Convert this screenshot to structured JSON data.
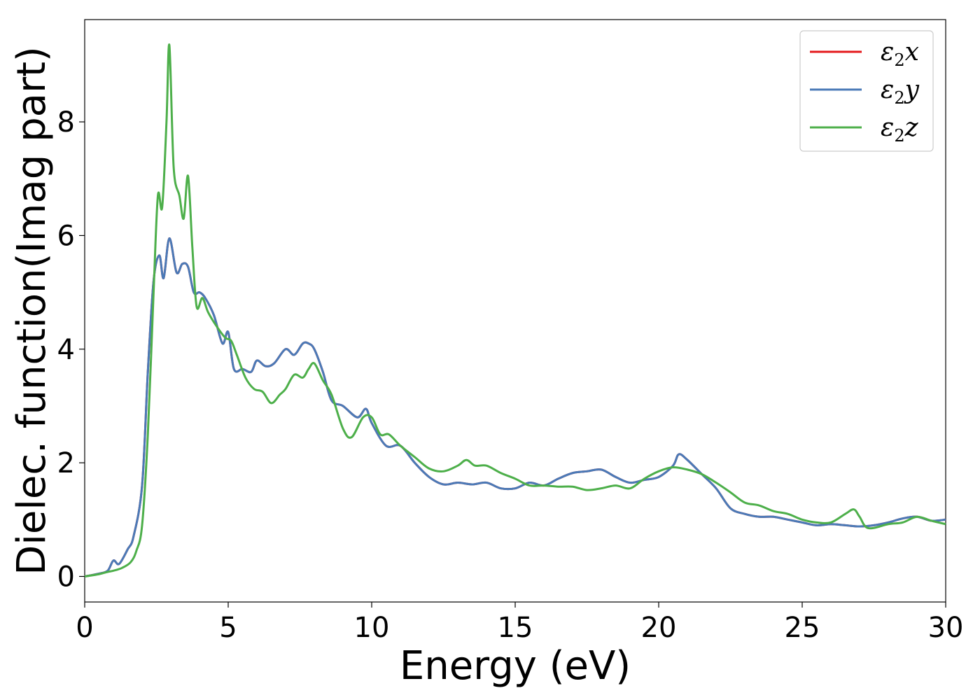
{
  "chart_data": {
    "type": "line",
    "xlabel": "Energy (eV)",
    "ylabel": "Dielec. function(Imag part)",
    "xlim": [
      0,
      30
    ],
    "ylim": [
      -0.45,
      9.8
    ],
    "x_ticks": [
      0,
      5,
      10,
      15,
      20,
      25,
      30
    ],
    "y_ticks": [
      0,
      2,
      4,
      6,
      8
    ],
    "legend_position": "top-right",
    "grid": false,
    "series": [
      {
        "name": "x",
        "label_prefix": "ε",
        "label_sub": "2",
        "color": "#e41a1c",
        "x": [
          0,
          0.5,
          0.8,
          1.0,
          1.2,
          1.5,
          1.7,
          2.0,
          2.2,
          2.4,
          2.6,
          2.75,
          2.95,
          3.2,
          3.4,
          3.6,
          3.8,
          4.0,
          4.2,
          4.5,
          4.8,
          5.0,
          5.2,
          5.5,
          5.8,
          6.0,
          6.3,
          6.6,
          7.0,
          7.3,
          7.6,
          7.8,
          8.0,
          8.3,
          8.6,
          9.0,
          9.5,
          9.8,
          10.0,
          10.5,
          11.0,
          11.5,
          12.0,
          12.5,
          13.0,
          13.5,
          14.0,
          14.5,
          15.0,
          15.5,
          16.0,
          16.5,
          17.0,
          17.5,
          18.0,
          18.5,
          19.0,
          19.5,
          20.0,
          20.5,
          20.7,
          21.0,
          21.5,
          22.0,
          22.5,
          23.0,
          23.5,
          24.0,
          24.5,
          25.0,
          25.5,
          26.0,
          26.5,
          27.0,
          27.5,
          28.0,
          28.5,
          29.0,
          29.5,
          30.0
        ],
        "values": [
          0,
          0.05,
          0.1,
          0.28,
          0.22,
          0.48,
          0.7,
          1.6,
          3.6,
          5.2,
          5.65,
          5.25,
          5.95,
          5.35,
          5.5,
          5.45,
          5.0,
          5.0,
          4.9,
          4.6,
          4.1,
          4.3,
          3.65,
          3.65,
          3.6,
          3.8,
          3.7,
          3.75,
          4.0,
          3.9,
          4.1,
          4.1,
          4.0,
          3.6,
          3.1,
          3.0,
          2.8,
          2.95,
          2.7,
          2.3,
          2.3,
          2.0,
          1.75,
          1.62,
          1.65,
          1.62,
          1.65,
          1.55,
          1.55,
          1.65,
          1.6,
          1.72,
          1.82,
          1.85,
          1.88,
          1.75,
          1.65,
          1.7,
          1.75,
          1.95,
          2.15,
          2.05,
          1.8,
          1.55,
          1.2,
          1.1,
          1.05,
          1.05,
          1.0,
          0.95,
          0.9,
          0.92,
          0.9,
          0.88,
          0.9,
          0.95,
          1.02,
          1.05,
          0.98,
          1.0
        ]
      },
      {
        "name": "y",
        "label_prefix": "ε",
        "label_sub": "2",
        "color": "#4a7ab7",
        "x": [
          0,
          0.5,
          0.8,
          1.0,
          1.2,
          1.5,
          1.7,
          2.0,
          2.2,
          2.4,
          2.6,
          2.75,
          2.95,
          3.2,
          3.4,
          3.6,
          3.8,
          4.0,
          4.2,
          4.5,
          4.8,
          5.0,
          5.2,
          5.5,
          5.8,
          6.0,
          6.3,
          6.6,
          7.0,
          7.3,
          7.6,
          7.8,
          8.0,
          8.3,
          8.6,
          9.0,
          9.5,
          9.8,
          10.0,
          10.5,
          11.0,
          11.5,
          12.0,
          12.5,
          13.0,
          13.5,
          14.0,
          14.5,
          15.0,
          15.5,
          16.0,
          16.5,
          17.0,
          17.5,
          18.0,
          18.5,
          19.0,
          19.5,
          20.0,
          20.5,
          20.7,
          21.0,
          21.5,
          22.0,
          22.5,
          23.0,
          23.5,
          24.0,
          24.5,
          25.0,
          25.5,
          26.0,
          26.5,
          27.0,
          27.5,
          28.0,
          28.5,
          29.0,
          29.5,
          30.0
        ],
        "values": [
          0,
          0.05,
          0.1,
          0.28,
          0.22,
          0.48,
          0.7,
          1.6,
          3.6,
          5.2,
          5.65,
          5.25,
          5.95,
          5.35,
          5.5,
          5.45,
          5.0,
          5.0,
          4.9,
          4.6,
          4.1,
          4.3,
          3.65,
          3.65,
          3.6,
          3.8,
          3.7,
          3.75,
          4.0,
          3.9,
          4.1,
          4.1,
          4.0,
          3.6,
          3.1,
          3.0,
          2.8,
          2.95,
          2.7,
          2.3,
          2.3,
          2.0,
          1.75,
          1.62,
          1.65,
          1.62,
          1.65,
          1.55,
          1.55,
          1.65,
          1.6,
          1.72,
          1.82,
          1.85,
          1.88,
          1.75,
          1.65,
          1.7,
          1.75,
          1.95,
          2.15,
          2.05,
          1.8,
          1.55,
          1.2,
          1.1,
          1.05,
          1.05,
          1.0,
          0.95,
          0.9,
          0.92,
          0.9,
          0.88,
          0.9,
          0.95,
          1.02,
          1.05,
          0.98,
          1.0
        ]
      },
      {
        "name": "z",
        "label_prefix": "ε",
        "label_sub": "2",
        "color": "#4daf4a",
        "x": [
          0,
          0.5,
          0.8,
          1.0,
          1.3,
          1.6,
          1.8,
          2.0,
          2.2,
          2.4,
          2.55,
          2.7,
          2.85,
          2.95,
          3.1,
          3.3,
          3.45,
          3.6,
          3.75,
          3.9,
          4.1,
          4.3,
          4.6,
          4.9,
          5.1,
          5.3,
          5.6,
          5.9,
          6.2,
          6.5,
          6.8,
          7.0,
          7.3,
          7.6,
          7.8,
          8.0,
          8.3,
          8.6,
          9.0,
          9.3,
          9.7,
          10.0,
          10.3,
          10.6,
          11.0,
          11.5,
          12.0,
          12.5,
          13.0,
          13.3,
          13.6,
          14.0,
          14.5,
          15.0,
          15.5,
          16.0,
          16.5,
          17.0,
          17.5,
          18.0,
          18.5,
          19.0,
          19.5,
          20.0,
          20.5,
          21.0,
          21.5,
          22.0,
          22.5,
          23.0,
          23.5,
          24.0,
          24.5,
          25.0,
          25.5,
          26.0,
          26.5,
          26.8,
          27.0,
          27.3,
          28.0,
          28.5,
          29.0,
          29.5,
          30.0
        ],
        "values": [
          0,
          0.04,
          0.08,
          0.1,
          0.15,
          0.25,
          0.45,
          0.9,
          2.5,
          5.0,
          6.7,
          6.5,
          8.0,
          9.35,
          7.2,
          6.7,
          6.3,
          7.05,
          5.8,
          4.75,
          4.9,
          4.65,
          4.4,
          4.2,
          4.15,
          3.9,
          3.5,
          3.3,
          3.25,
          3.05,
          3.2,
          3.3,
          3.55,
          3.5,
          3.65,
          3.75,
          3.45,
          3.2,
          2.6,
          2.45,
          2.8,
          2.8,
          2.5,
          2.5,
          2.3,
          2.1,
          1.9,
          1.85,
          1.95,
          2.05,
          1.95,
          1.95,
          1.82,
          1.72,
          1.6,
          1.6,
          1.58,
          1.58,
          1.52,
          1.55,
          1.6,
          1.55,
          1.72,
          1.85,
          1.92,
          1.88,
          1.8,
          1.65,
          1.48,
          1.3,
          1.25,
          1.15,
          1.1,
          1.0,
          0.95,
          0.95,
          1.1,
          1.18,
          1.05,
          0.85,
          0.92,
          0.95,
          1.05,
          0.98,
          0.92
        ]
      }
    ]
  }
}
